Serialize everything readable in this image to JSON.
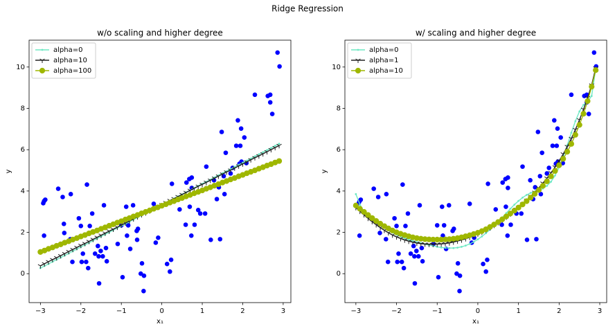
{
  "title": "Ridge Regression",
  "chart_data": [
    {
      "type": "line",
      "title": "w/o scaling and higher degree",
      "x_label": "x₁",
      "y_label": "y",
      "xlim": [
        -3.28,
        3.19
      ],
      "ylim": [
        -1.4,
        11.3
      ],
      "xticks": [
        {
          "value": -3,
          "label": "−3"
        },
        {
          "value": -2,
          "label": "−2"
        },
        {
          "value": -1,
          "label": "−1"
        },
        0,
        1,
        2,
        3
      ],
      "yticks": [
        0,
        2,
        4,
        6,
        8,
        10
      ],
      "legend": "upper left",
      "scatter": {
        "color": "blue",
        "x": [
          -2.91,
          -2.88,
          -2.93,
          -2.91,
          -2.56,
          -2.45,
          -2.42,
          -2.41,
          -2.25,
          -2.21,
          -2.26,
          -2.05,
          -2.0,
          -1.98,
          -1.95,
          -1.87,
          -1.85,
          -1.82,
          -1.78,
          -1.72,
          -1.65,
          -1.58,
          -1.56,
          -1.55,
          -1.51,
          -1.46,
          -1.43,
          -1.38,
          -1.36,
          -1.09,
          -1.0,
          -0.97,
          -0.88,
          -0.86,
          -0.83,
          -0.78,
          -0.71,
          -0.62,
          -0.59,
          -0.61,
          -0.52,
          -0.49,
          -0.44,
          -0.45,
          -0.2,
          -0.15,
          -0.09,
          0.13,
          0.2,
          0.23,
          0.25,
          0.44,
          0.59,
          0.61,
          0.68,
          0.74,
          0.74,
          0.69,
          0.73,
          0.81,
          0.9,
          0.95,
          1.07,
          1.1,
          1.21,
          1.29,
          1.36,
          1.41,
          1.44,
          1.48,
          1.58,
          1.55,
          1.53,
          1.7,
          1.75,
          1.84,
          1.88,
          1.92,
          1.96,
          1.97,
          1.94,
          2.04,
          2.09,
          2.3,
          2.62,
          2.68,
          2.68,
          2.73,
          2.86,
          2.91
        ],
        "y": [
          3.51,
          3.58,
          3.41,
          1.84,
          4.11,
          3.71,
          2.41,
          1.97,
          3.85,
          0.57,
          1.67,
          2.68,
          2.31,
          0.57,
          0.97,
          0.57,
          4.31,
          0.27,
          2.31,
          2.91,
          0.97,
          1.34,
          0.84,
          -0.47,
          1.1,
          0.84,
          3.31,
          1.24,
          0.6,
          1.44,
          2.34,
          -0.17,
          3.24,
          1.84,
          2.34,
          1.2,
          3.31,
          2.07,
          2.17,
          1.64,
          0.0,
          0.5,
          -0.1,
          -0.84,
          3.38,
          1.5,
          1.74,
          0.47,
          0.1,
          0.67,
          4.35,
          3.11,
          2.37,
          4.41,
          4.58,
          4.15,
          4.65,
          3.24,
          1.84,
          2.37,
          3.08,
          2.91,
          2.91,
          5.18,
          1.64,
          4.52,
          3.61,
          4.18,
          1.67,
          6.86,
          5.85,
          3.85,
          4.72,
          4.85,
          5.12,
          6.19,
          7.42,
          5.32,
          7.02,
          5.42,
          6.19,
          6.59,
          5.35,
          8.66,
          8.6,
          8.66,
          8.29,
          7.73,
          10.7,
          10.03
        ]
      },
      "x": [
        -3.0,
        -2.9,
        -2.8,
        -2.7,
        -2.6,
        -2.5,
        -2.4,
        -2.3,
        -2.2,
        -2.1,
        -2.0,
        -1.9,
        -1.8,
        -1.7,
        -1.6,
        -1.5,
        -1.4,
        -1.3,
        -1.2,
        -1.1,
        -1.0,
        -0.9,
        -0.8,
        -0.7,
        -0.6,
        -0.5,
        -0.4,
        -0.3,
        -0.2,
        -0.1,
        0.0,
        0.1,
        0.2,
        0.3,
        0.4,
        0.5,
        0.6,
        0.7,
        0.8,
        0.9,
        1.0,
        1.1,
        1.2,
        1.3,
        1.4,
        1.5,
        1.6,
        1.7,
        1.8,
        1.9,
        2.0,
        2.1,
        2.2,
        2.3,
        2.4,
        2.5,
        2.6,
        2.7,
        2.8,
        2.9
      ],
      "series": [
        {
          "name": "alpha=0",
          "color": "#6fe8c4",
          "marker": "point",
          "values": [
            0.27,
            0.37,
            0.47,
            0.58,
            0.68,
            0.78,
            0.88,
            0.98,
            1.09,
            1.19,
            1.29,
            1.39,
            1.49,
            1.6,
            1.7,
            1.8,
            1.9,
            2.0,
            2.11,
            2.21,
            2.31,
            2.41,
            2.51,
            2.62,
            2.72,
            2.82,
            2.92,
            3.02,
            3.13,
            3.23,
            3.33,
            3.43,
            3.53,
            3.64,
            3.74,
            3.84,
            3.94,
            4.04,
            4.15,
            4.25,
            4.35,
            4.45,
            4.55,
            4.66,
            4.76,
            4.86,
            4.96,
            5.06,
            5.17,
            5.27,
            5.37,
            5.47,
            5.57,
            5.68,
            5.78,
            5.88,
            5.98,
            6.08,
            6.19,
            6.29
          ]
        },
        {
          "name": "alpha=10",
          "color": "#222222",
          "marker": "tri",
          "values": [
            0.38,
            0.48,
            0.58,
            0.68,
            0.77,
            0.87,
            0.97,
            1.07,
            1.17,
            1.27,
            1.37,
            1.46,
            1.56,
            1.66,
            1.76,
            1.86,
            1.96,
            2.06,
            2.15,
            2.25,
            2.35,
            2.45,
            2.55,
            2.65,
            2.75,
            2.85,
            2.94,
            3.04,
            3.14,
            3.24,
            3.34,
            3.44,
            3.54,
            3.63,
            3.73,
            3.83,
            3.93,
            4.03,
            4.13,
            4.23,
            4.32,
            4.42,
            4.52,
            4.62,
            4.72,
            4.82,
            4.92,
            5.01,
            5.11,
            5.21,
            5.31,
            5.41,
            5.51,
            5.61,
            5.7,
            5.8,
            5.9,
            6.0,
            6.1,
            6.2
          ]
        },
        {
          "name": "alpha=100",
          "color": "#9fb700",
          "marker": "circle",
          "values": [
            1.05,
            1.12,
            1.2,
            1.27,
            1.35,
            1.42,
            1.5,
            1.57,
            1.65,
            1.72,
            1.8,
            1.87,
            1.95,
            2.02,
            2.09,
            2.17,
            2.24,
            2.32,
            2.39,
            2.47,
            2.54,
            2.62,
            2.69,
            2.77,
            2.84,
            2.92,
            2.99,
            3.06,
            3.14,
            3.21,
            3.29,
            3.36,
            3.44,
            3.51,
            3.59,
            3.66,
            3.74,
            3.81,
            3.89,
            3.96,
            4.03,
            4.11,
            4.18,
            4.26,
            4.33,
            4.41,
            4.48,
            4.56,
            4.63,
            4.71,
            4.78,
            4.86,
            4.93,
            5.0,
            5.08,
            5.15,
            5.23,
            5.3,
            5.38,
            5.45
          ]
        }
      ]
    },
    {
      "type": "line",
      "title": "w/ scaling and higher degree",
      "x_label": "x₁",
      "y_label": "y",
      "xlim": [
        -3.27,
        3.17
      ],
      "ylim": [
        -1.4,
        11.3
      ],
      "xticks": [
        {
          "value": -3,
          "label": "−3"
        },
        {
          "value": -2,
          "label": "−2"
        },
        {
          "value": -1,
          "label": "−1"
        },
        0,
        1,
        2,
        3
      ],
      "yticks": [
        0,
        2,
        4,
        6,
        8,
        10
      ],
      "legend": "upper left",
      "scatter": {
        "color": "blue",
        "x": [
          -2.91,
          -2.88,
          -2.93,
          -2.91,
          -2.56,
          -2.45,
          -2.42,
          -2.41,
          -2.25,
          -2.21,
          -2.26,
          -2.05,
          -2.0,
          -1.98,
          -1.95,
          -1.87,
          -1.85,
          -1.82,
          -1.78,
          -1.72,
          -1.65,
          -1.58,
          -1.56,
          -1.55,
          -1.51,
          -1.46,
          -1.43,
          -1.38,
          -1.36,
          -1.09,
          -1.0,
          -0.97,
          -0.88,
          -0.86,
          -0.83,
          -0.78,
          -0.71,
          -0.62,
          -0.59,
          -0.61,
          -0.52,
          -0.49,
          -0.44,
          -0.45,
          -0.2,
          -0.15,
          -0.09,
          0.13,
          0.2,
          0.23,
          0.25,
          0.44,
          0.59,
          0.61,
          0.68,
          0.74,
          0.74,
          0.69,
          0.73,
          0.81,
          0.9,
          0.95,
          1.07,
          1.1,
          1.21,
          1.29,
          1.36,
          1.41,
          1.44,
          1.48,
          1.58,
          1.55,
          1.53,
          1.7,
          1.75,
          1.84,
          1.88,
          1.92,
          1.96,
          1.97,
          1.94,
          2.04,
          2.09,
          2.3,
          2.62,
          2.68,
          2.68,
          2.73,
          2.86,
          2.91
        ],
        "y": [
          3.51,
          3.58,
          3.41,
          1.84,
          4.11,
          3.71,
          2.41,
          1.97,
          3.85,
          0.57,
          1.67,
          2.68,
          2.31,
          0.57,
          0.97,
          0.57,
          4.31,
          0.27,
          2.31,
          2.91,
          0.97,
          1.34,
          0.84,
          -0.47,
          1.1,
          0.84,
          3.31,
          1.24,
          0.6,
          1.44,
          2.34,
          -0.17,
          3.24,
          1.84,
          2.34,
          1.2,
          3.31,
          2.07,
          2.17,
          1.64,
          0.0,
          0.5,
          -0.1,
          -0.84,
          3.38,
          1.5,
          1.74,
          0.47,
          0.1,
          0.67,
          4.35,
          3.11,
          2.37,
          4.41,
          4.58,
          4.15,
          4.65,
          3.24,
          1.84,
          2.37,
          3.08,
          2.91,
          2.91,
          5.18,
          1.64,
          4.52,
          3.61,
          4.18,
          1.67,
          6.86,
          5.85,
          3.85,
          4.72,
          4.85,
          5.12,
          6.19,
          7.42,
          5.32,
          7.02,
          5.42,
          6.19,
          6.59,
          5.35,
          8.66,
          8.6,
          8.66,
          8.29,
          7.73,
          10.7,
          10.03
        ]
      },
      "x": [
        -3.0,
        -2.9,
        -2.8,
        -2.7,
        -2.6,
        -2.5,
        -2.4,
        -2.3,
        -2.2,
        -2.1,
        -2.0,
        -1.9,
        -1.8,
        -1.7,
        -1.6,
        -1.5,
        -1.4,
        -1.3,
        -1.2,
        -1.1,
        -1.0,
        -0.9,
        -0.8,
        -0.7,
        -0.6,
        -0.5,
        -0.4,
        -0.3,
        -0.2,
        -0.1,
        0.0,
        0.1,
        0.2,
        0.3,
        0.4,
        0.5,
        0.6,
        0.7,
        0.8,
        0.9,
        1.0,
        1.1,
        1.2,
        1.3,
        1.4,
        1.5,
        1.6,
        1.7,
        1.8,
        1.9,
        2.0,
        2.1,
        2.2,
        2.3,
        2.4,
        2.5,
        2.6,
        2.7,
        2.8,
        2.9
      ],
      "series": [
        {
          "name": "alpha=0",
          "color": "#6fe8c4",
          "marker": "point",
          "values": [
            3.85,
            3.35,
            3.0,
            2.78,
            2.62,
            2.48,
            2.35,
            2.22,
            2.1,
            1.99,
            1.89,
            1.8,
            1.72,
            1.65,
            1.59,
            1.53,
            1.48,
            1.43,
            1.38,
            1.34,
            1.3,
            1.27,
            1.25,
            1.24,
            1.24,
            1.26,
            1.3,
            1.36,
            1.44,
            1.54,
            1.66,
            1.8,
            1.96,
            2.13,
            2.32,
            2.52,
            2.72,
            2.93,
            3.14,
            3.34,
            3.52,
            3.68,
            3.81,
            3.91,
            3.98,
            4.04,
            4.12,
            4.25,
            4.45,
            4.75,
            5.15,
            5.65,
            6.22,
            6.82,
            7.38,
            7.85,
            8.17,
            8.32,
            8.6,
            9.9
          ]
        },
        {
          "name": "alpha=1",
          "color": "#222222",
          "marker": "tri",
          "values": [
            3.2,
            3.02,
            2.85,
            2.68,
            2.52,
            2.37,
            2.23,
            2.1,
            1.98,
            1.87,
            1.78,
            1.7,
            1.63,
            1.57,
            1.52,
            1.48,
            1.45,
            1.43,
            1.42,
            1.42,
            1.43,
            1.44,
            1.46,
            1.49,
            1.53,
            1.58,
            1.63,
            1.69,
            1.76,
            1.84,
            1.92,
            2.01,
            2.11,
            2.22,
            2.34,
            2.47,
            2.6,
            2.74,
            2.89,
            3.04,
            3.2,
            3.37,
            3.55,
            3.74,
            3.94,
            4.15,
            4.38,
            4.62,
            4.88,
            5.16,
            5.46,
            5.79,
            6.15,
            6.54,
            6.97,
            7.44,
            7.95,
            8.51,
            9.13,
            9.95
          ]
        },
        {
          "name": "alpha=10",
          "color": "#9fb700",
          "marker": "circle",
          "values": [
            3.3,
            3.14,
            2.99,
            2.84,
            2.69,
            2.55,
            2.42,
            2.3,
            2.19,
            2.09,
            2.0,
            1.93,
            1.87,
            1.81,
            1.76,
            1.72,
            1.69,
            1.67,
            1.66,
            1.65,
            1.65,
            1.65,
            1.66,
            1.67,
            1.69,
            1.72,
            1.76,
            1.81,
            1.86,
            1.92,
            1.98,
            2.06,
            2.15,
            2.26,
            2.38,
            2.5,
            2.63,
            2.77,
            2.91,
            3.05,
            3.2,
            3.35,
            3.51,
            3.68,
            3.86,
            4.05,
            4.25,
            4.47,
            4.71,
            4.97,
            5.25,
            5.56,
            5.9,
            6.28,
            6.72,
            7.2,
            7.74,
            8.35,
            9.05,
            9.85
          ]
        }
      ]
    }
  ]
}
